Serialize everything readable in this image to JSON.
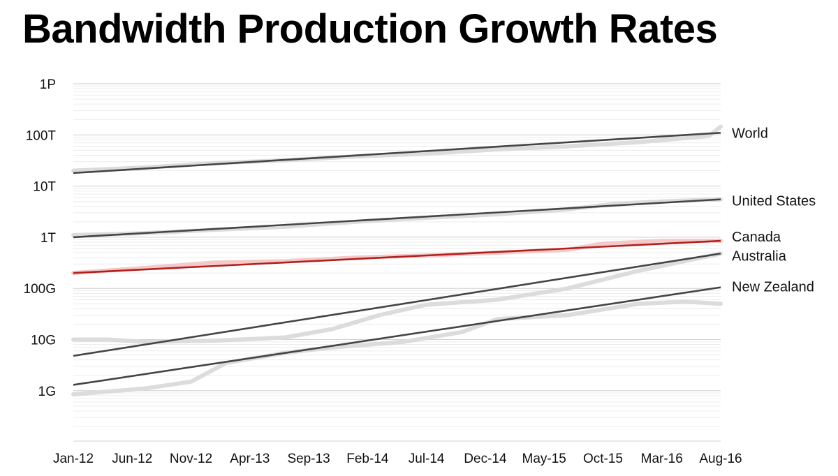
{
  "chart_data": {
    "type": "line",
    "title": "Bandwidth Production Growth Rates",
    "y_scale": "log",
    "ylim": [
      "1G",
      "1P"
    ],
    "y_ticks": [
      {
        "label": "1P",
        "value": 1000000000000000.0
      },
      {
        "label": "100T",
        "value": 100000000000000.0
      },
      {
        "label": "10T",
        "value": 10000000000000.0
      },
      {
        "label": "1T",
        "value": 1000000000000.0
      },
      {
        "label": "100G",
        "value": 100000000000.0
      },
      {
        "label": "10G",
        "value": 10000000000.0
      },
      {
        "label": "1G",
        "value": 1000000000.0
      }
    ],
    "x_ticks": [
      "Jan-12",
      "Jun-12",
      "Nov-12",
      "Apr-13",
      "Sep-13",
      "Feb-14",
      "Jul-14",
      "Dec-14",
      "May-15",
      "Oct-15",
      "Mar-16",
      "Aug-16"
    ],
    "x_months": [
      "2012-01",
      "2012-06",
      "2012-11",
      "2013-04",
      "2013-09",
      "2014-02",
      "2014-07",
      "2014-12",
      "2015-05",
      "2015-10",
      "2016-03",
      "2016-08"
    ],
    "grid": true,
    "legend": "direct labels at right end of lines",
    "colors": {
      "trend": "#444444",
      "highlight": "#b0201c",
      "actual": "#dcdcdc",
      "actual_highlight": "#f5c9c9",
      "grid_major": "#cfcfcf",
      "grid_minor": "#ececec"
    },
    "series": [
      {
        "name": "World",
        "color": "#444444",
        "trend_values": [
          18000000000000.0,
          110000000000000.0
        ],
        "actual": [
          [
            0,
            20000000000000.0
          ],
          [
            6,
            23000000000000.0
          ],
          [
            12,
            28000000000000.0
          ],
          [
            18,
            32000000000000.0
          ],
          [
            24,
            38000000000000.0
          ],
          [
            30,
            43000000000000.0
          ],
          [
            36,
            52000000000000.0
          ],
          [
            42,
            60000000000000.0
          ],
          [
            48,
            72000000000000.0
          ],
          [
            54,
            95000000000000.0
          ],
          [
            55,
            145000000000000.0
          ]
        ]
      },
      {
        "name": "United States",
        "color": "#444444",
        "trend_values": [
          1000000000000.0,
          5500000000000.0
        ],
        "actual": [
          [
            0,
            1100000000000.0
          ],
          [
            6,
            1200000000000.0
          ],
          [
            12,
            1400000000000.0
          ],
          [
            18,
            1600000000000.0
          ],
          [
            24,
            2000000000000.0
          ],
          [
            30,
            2400000000000.0
          ],
          [
            36,
            2800000000000.0
          ],
          [
            42,
            3500000000000.0
          ],
          [
            46,
            4500000000000.0
          ],
          [
            50,
            5000000000000.0
          ],
          [
            55,
            5500000000000.0
          ]
        ]
      },
      {
        "name": "Canada",
        "color": "#b0201c",
        "highlight": true,
        "trend_values": [
          200000000000.0,
          850000000000.0
        ],
        "actual": [
          [
            0,
            200000000000.0
          ],
          [
            6,
            250000000000.0
          ],
          [
            12,
            320000000000.0
          ],
          [
            18,
            340000000000.0
          ],
          [
            24,
            400000000000.0
          ],
          [
            30,
            440000000000.0
          ],
          [
            36,
            500000000000.0
          ],
          [
            42,
            570000000000.0
          ],
          [
            45,
            750000000000.0
          ],
          [
            50,
            850000000000.0
          ],
          [
            55,
            850000000000.0
          ]
        ]
      },
      {
        "name": "Australia",
        "color": "#444444",
        "trend_values": [
          4800000000.0,
          480000000000.0
        ],
        "actual": [
          [
            0,
            10000000000.0
          ],
          [
            3,
            10000000000.0
          ],
          [
            6,
            9000000000.0
          ],
          [
            12,
            9500000000.0
          ],
          [
            18,
            11000000000.0
          ],
          [
            22,
            16000000000.0
          ],
          [
            26,
            30000000000.0
          ],
          [
            30,
            48000000000.0
          ],
          [
            36,
            60000000000.0
          ],
          [
            42,
            100000000000.0
          ],
          [
            48,
            220000000000.0
          ],
          [
            55,
            480000000000.0
          ]
        ]
      },
      {
        "name": "New Zealand",
        "color": "#444444",
        "trend_values": [
          1300000000.0,
          105000000000.0
        ],
        "actual": [
          [
            0,
            850000000.0
          ],
          [
            6,
            1100000000.0
          ],
          [
            10,
            1500000000.0
          ],
          [
            13,
            3500000000.0
          ],
          [
            18,
            5500000000.0
          ],
          [
            22,
            7000000000.0
          ],
          [
            28,
            9000000000.0
          ],
          [
            33,
            14000000000.0
          ],
          [
            36,
            25000000000.0
          ],
          [
            42,
            30000000000.0
          ],
          [
            48,
            50000000000.0
          ],
          [
            52,
            55000000000.0
          ],
          [
            55,
            50000000000.0
          ]
        ]
      }
    ]
  }
}
